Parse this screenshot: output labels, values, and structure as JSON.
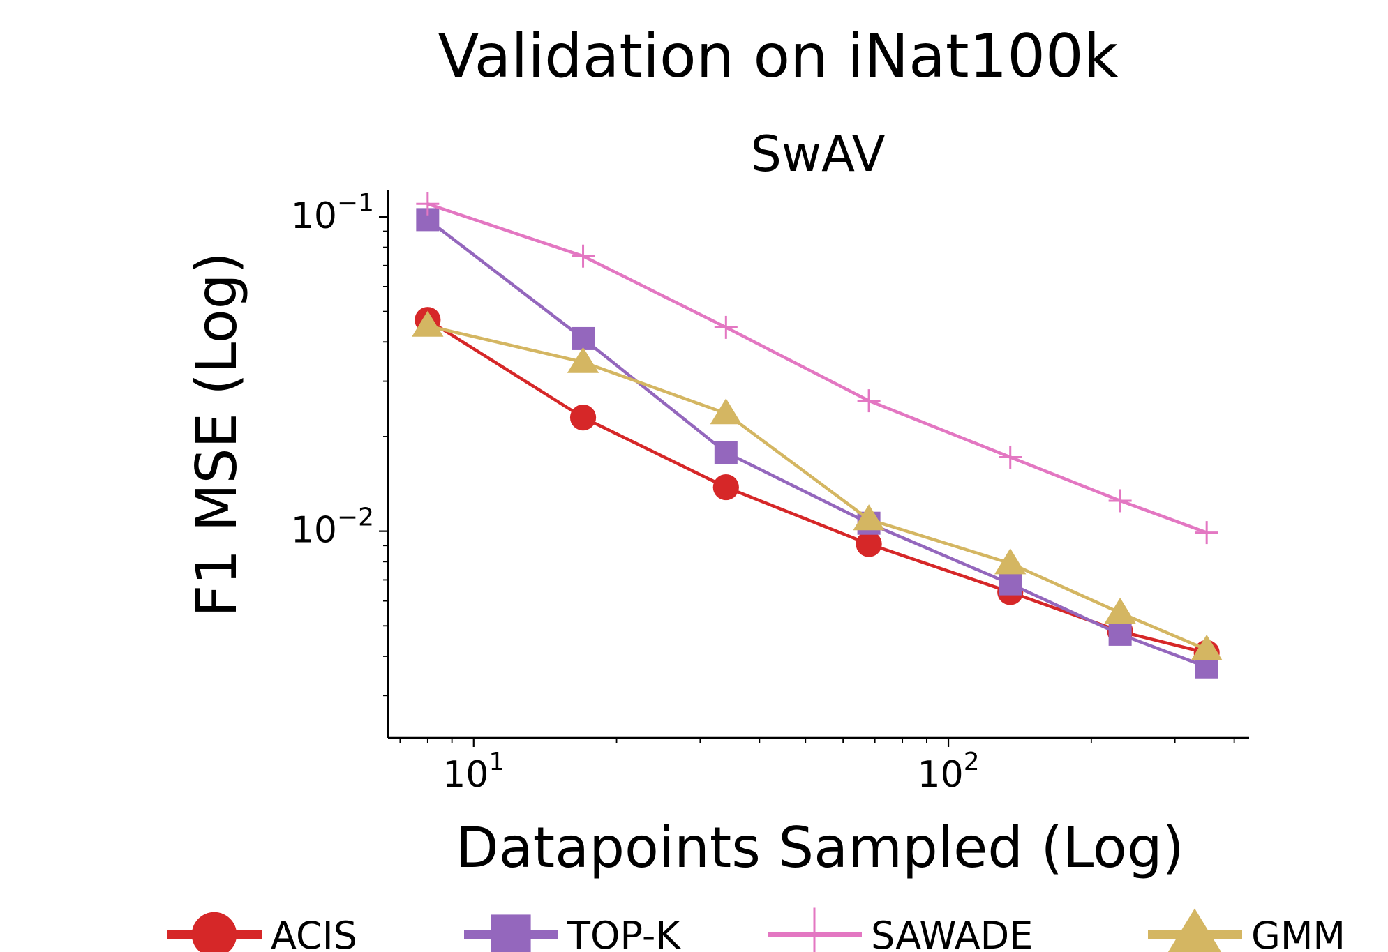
{
  "chart_data": {
    "type": "line",
    "title": "Validation on iNat100k",
    "subtitle": "SwAV",
    "xlabel": "Datapoints Sampled (Log)",
    "ylabel": "F1 MSE (Log)",
    "xscale": "log",
    "yscale": "log",
    "xlim": [
      6.6,
      430
    ],
    "ylim": [
      0.0022,
      0.122
    ],
    "x_ticks": [
      {
        "value": 10,
        "base": "10",
        "exp": "1"
      },
      {
        "value": 100,
        "base": "10",
        "exp": "2"
      }
    ],
    "y_ticks": [
      {
        "value": 0.1,
        "base": "10",
        "exp": "−1"
      },
      {
        "value": 0.01,
        "base": "10",
        "exp": "−2"
      }
    ],
    "grid": false,
    "legend_position": "bottom",
    "x": [
      8,
      17,
      34,
      68,
      135,
      230,
      350
    ],
    "series": [
      {
        "name": "ACIS",
        "color": "#d62728",
        "marker": "circle",
        "values": [
          0.047,
          0.023,
          0.0138,
          0.0091,
          0.0064,
          0.0048,
          0.0041
        ]
      },
      {
        "name": "TOP-K",
        "color": "#9467bd",
        "marker": "square",
        "values": [
          0.098,
          0.041,
          0.0178,
          0.0106,
          0.0068,
          0.0047,
          0.0037
        ]
      },
      {
        "name": "SAWADE",
        "color": "#e377c2",
        "marker": "plus",
        "values": [
          0.11,
          0.075,
          0.0445,
          0.026,
          0.0172,
          0.0125,
          0.0099
        ]
      },
      {
        "name": "GMM",
        "color": "#d4b662",
        "marker": "triangle",
        "values": [
          0.045,
          0.0345,
          0.0237,
          0.0109,
          0.0079,
          0.0055,
          0.0042
        ]
      }
    ]
  }
}
